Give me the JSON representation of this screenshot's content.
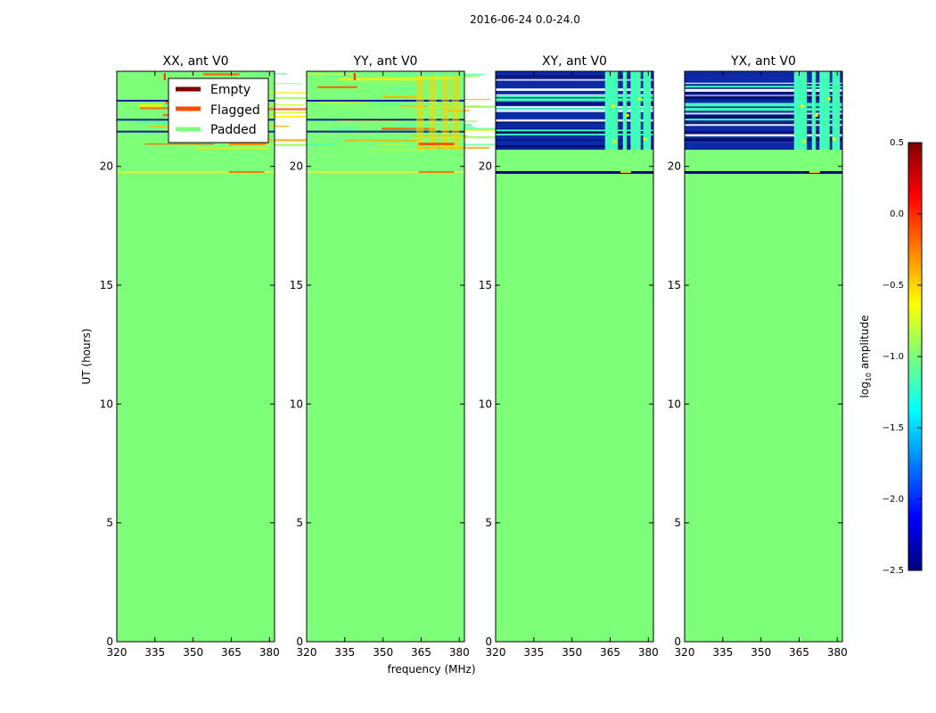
{
  "figure": {
    "suptitle": "2016-06-24 0.0-24.0"
  },
  "chart_data": {
    "type": "heatmap",
    "shared_xlabel": "frequency (MHz)",
    "shared_ylabel": "UT (hours)",
    "xlim": [
      320,
      382
    ],
    "ylim": [
      0,
      24
    ],
    "xticks": [
      320,
      335,
      350,
      365,
      380
    ],
    "yticks": [
      0,
      5,
      10,
      15,
      20
    ],
    "colors": {
      "padded": "#7dff7a",
      "flagged": "#ff4a00",
      "empty": "#800000",
      "low": "#00007f",
      "mid": "#40ffb7"
    },
    "panels": [
      {
        "title": "XX, ant V0",
        "mode": "parallel"
      },
      {
        "title": "YY, ant V0",
        "mode": "parallel"
      },
      {
        "title": "XY, ant V0",
        "mode": "cross"
      },
      {
        "title": "YX, ant V0",
        "mode": "cross"
      }
    ],
    "legend": {
      "location": "upper-right of first panel",
      "entries": [
        {
          "label": "Empty",
          "color": "#800000"
        },
        {
          "label": "Flagged",
          "color": "#ff4a00"
        },
        {
          "label": "Padded",
          "color": "#7dff7a"
        }
      ]
    },
    "colorbar": {
      "label_prefix": "log",
      "label_sub": "10",
      "label_suffix": " amplitude",
      "range": [
        -2.5,
        0.5
      ],
      "ticks": [
        0.5,
        0.0,
        -0.5,
        -1.0,
        -1.5,
        -2.0,
        -2.5
      ],
      "tick_labels": [
        "0.5",
        "0.0",
        "−0.5",
        "−1.0",
        "−1.5",
        "−2.0",
        "−2.5"
      ]
    }
  }
}
